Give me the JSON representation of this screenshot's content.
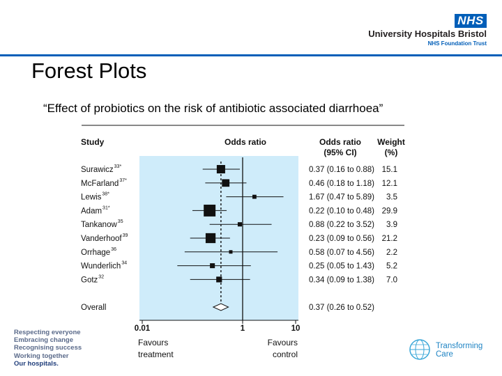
{
  "header": {
    "nhs_badge": "NHS",
    "org_name": "University Hospitals Bristol",
    "trust_name": "NHS Foundation Trust"
  },
  "slide": {
    "title": "Forest Plots",
    "subtitle": "“Effect of probiotics on the risk of antibiotic associated diarrhoea”"
  },
  "values_list": [
    "Respecting everyone",
    "Embracing change",
    "Recognising success",
    "Working together",
    "Our hospitals."
  ],
  "transforming_care": [
    "Transforming",
    "Care"
  ],
  "chart_data": {
    "type": "forest",
    "columns": {
      "study": "Study",
      "odds_ratio": "Odds ratio",
      "ci_line1": "Odds ratio",
      "ci_line2": "(95% CI)",
      "weight_line1": "Weight",
      "weight_line2": "(%)"
    },
    "x_scale": "log",
    "xlim": [
      0.01,
      10
    ],
    "ticks": [
      {
        "value": 0.01,
        "label": "0.01"
      },
      {
        "value": 1,
        "label": "1"
      },
      {
        "value": 10,
        "label": "10"
      }
    ],
    "favours_left": [
      "Favours",
      "treatment"
    ],
    "favours_right": [
      "Favours",
      "control"
    ],
    "studies": [
      {
        "name": "Surawicz",
        "ref": "33*",
        "or": 0.37,
        "lo": 0.16,
        "hi": 0.88,
        "ci_text": "0.37 (0.16 to 0.88)",
        "weight": 15.1,
        "weight_text": "15.1"
      },
      {
        "name": "McFarland",
        "ref": "37*",
        "or": 0.46,
        "lo": 0.18,
        "hi": 1.18,
        "ci_text": "0.46 (0.18 to 1.18)",
        "weight": 12.1,
        "weight_text": "12.1"
      },
      {
        "name": "Lewis",
        "ref": "38*",
        "or": 1.67,
        "lo": 0.47,
        "hi": 5.89,
        "ci_text": "1.67 (0.47 to 5.89)",
        "weight": 3.5,
        "weight_text": "3.5"
      },
      {
        "name": "Adam",
        "ref": "31*",
        "or": 0.22,
        "lo": 0.1,
        "hi": 0.48,
        "ci_text": "0.22 (0.10 to 0.48)",
        "weight": 29.9,
        "weight_text": "29.9"
      },
      {
        "name": "Tankanow",
        "ref": "35",
        "or": 0.88,
        "lo": 0.22,
        "hi": 3.52,
        "ci_text": "0.88 (0.22 to 3.52)",
        "weight": 3.9,
        "weight_text": "3.9"
      },
      {
        "name": "Vanderhoof",
        "ref": "39",
        "or": 0.23,
        "lo": 0.09,
        "hi": 0.56,
        "ci_text": "0.23 (0.09 to 0.56)",
        "weight": 21.2,
        "weight_text": "21.2"
      },
      {
        "name": "Orrhage",
        "ref": "36",
        "or": 0.58,
        "lo": 0.07,
        "hi": 4.56,
        "ci_text": "0.58 (0.07 to 4.56)",
        "weight": 2.2,
        "weight_text": "2.2"
      },
      {
        "name": "Wunderlich",
        "ref": "34",
        "or": 0.25,
        "lo": 0.05,
        "hi": 1.43,
        "ci_text": "0.25 (0.05 to 1.43)",
        "weight": 5.2,
        "weight_text": "5.2"
      },
      {
        "name": "Gotz",
        "ref": "32",
        "or": 0.34,
        "lo": 0.09,
        "hi": 1.38,
        "ci_text": "0.34 (0.09 to 1.38)",
        "weight": 7.0,
        "weight_text": "7.0"
      }
    ],
    "overall": {
      "name": "Overall",
      "or": 0.37,
      "lo": 0.26,
      "hi": 0.52,
      "ci_text": "0.37 (0.26 to 0.52)"
    },
    "colors": {
      "panel": "#cfecfa",
      "ink": "#111111"
    }
  }
}
